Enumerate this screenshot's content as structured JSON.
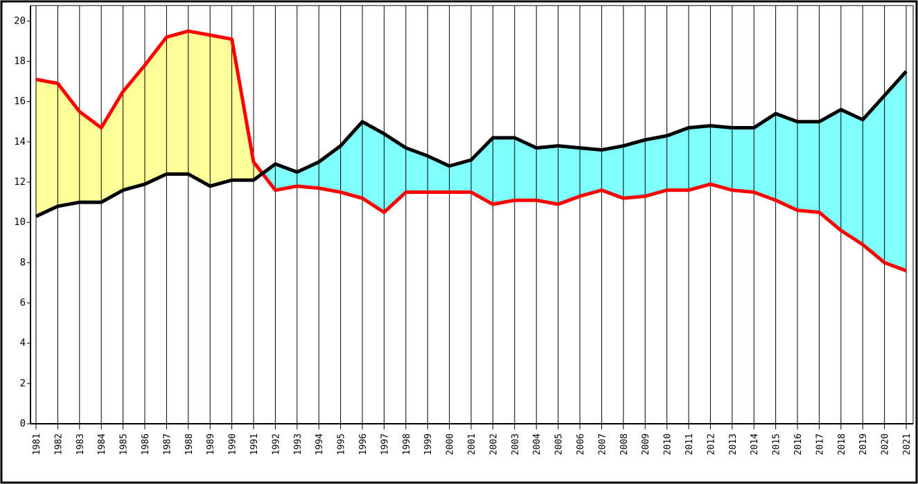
{
  "chart_data": {
    "type": "line",
    "categories": [
      "1981",
      "1982",
      "1983",
      "1984",
      "1985",
      "1986",
      "1987",
      "1988",
      "1989",
      "1990",
      "1991",
      "1992",
      "1993",
      "1994",
      "1995",
      "1996",
      "1997",
      "1998",
      "1999",
      "2000",
      "2001",
      "2002",
      "2003",
      "2004",
      "2005",
      "2006",
      "2007",
      "2008",
      "2009",
      "2010",
      "2011",
      "2012",
      "2013",
      "2014",
      "2015",
      "2016",
      "2017",
      "2018",
      "2019",
      "2020",
      "2021"
    ],
    "series": [
      {
        "color": "#ff0000",
        "fill": "#ffff99",
        "values": [
          17.1,
          16.9,
          15.5,
          14.7,
          16.5,
          17.8,
          19.2,
          19.5,
          19.3,
          19.1,
          13.0,
          11.6,
          11.8,
          11.7,
          11.5,
          11.2,
          10.5,
          11.5,
          11.5,
          11.5,
          11.5,
          10.9,
          11.1,
          11.1,
          10.9,
          11.3,
          11.6,
          11.2,
          11.3,
          11.6,
          11.6,
          11.9,
          11.6,
          11.5,
          11.1,
          10.6,
          10.5,
          9.6,
          8.9,
          8.0,
          7.6
        ]
      },
      {
        "color": "#000000",
        "fill": "#80ffff",
        "values": [
          10.3,
          10.8,
          11.0,
          11.0,
          11.6,
          11.9,
          12.4,
          12.4,
          11.8,
          12.1,
          12.1,
          12.9,
          12.5,
          13.0,
          13.8,
          15.0,
          14.4,
          13.7,
          13.3,
          12.8,
          13.1,
          14.2,
          14.2,
          13.7,
          13.8,
          13.7,
          13.6,
          13.8,
          14.1,
          14.3,
          14.7,
          14.8,
          14.7,
          14.7,
          15.4,
          15.0,
          15.0,
          15.6,
          15.1,
          16.3,
          17.5
        ]
      }
    ],
    "ylim": [
      0,
      20.7
    ],
    "yticks": [
      0,
      2,
      4,
      6,
      8,
      10,
      12,
      14,
      16,
      18,
      20
    ],
    "grid": true
  }
}
